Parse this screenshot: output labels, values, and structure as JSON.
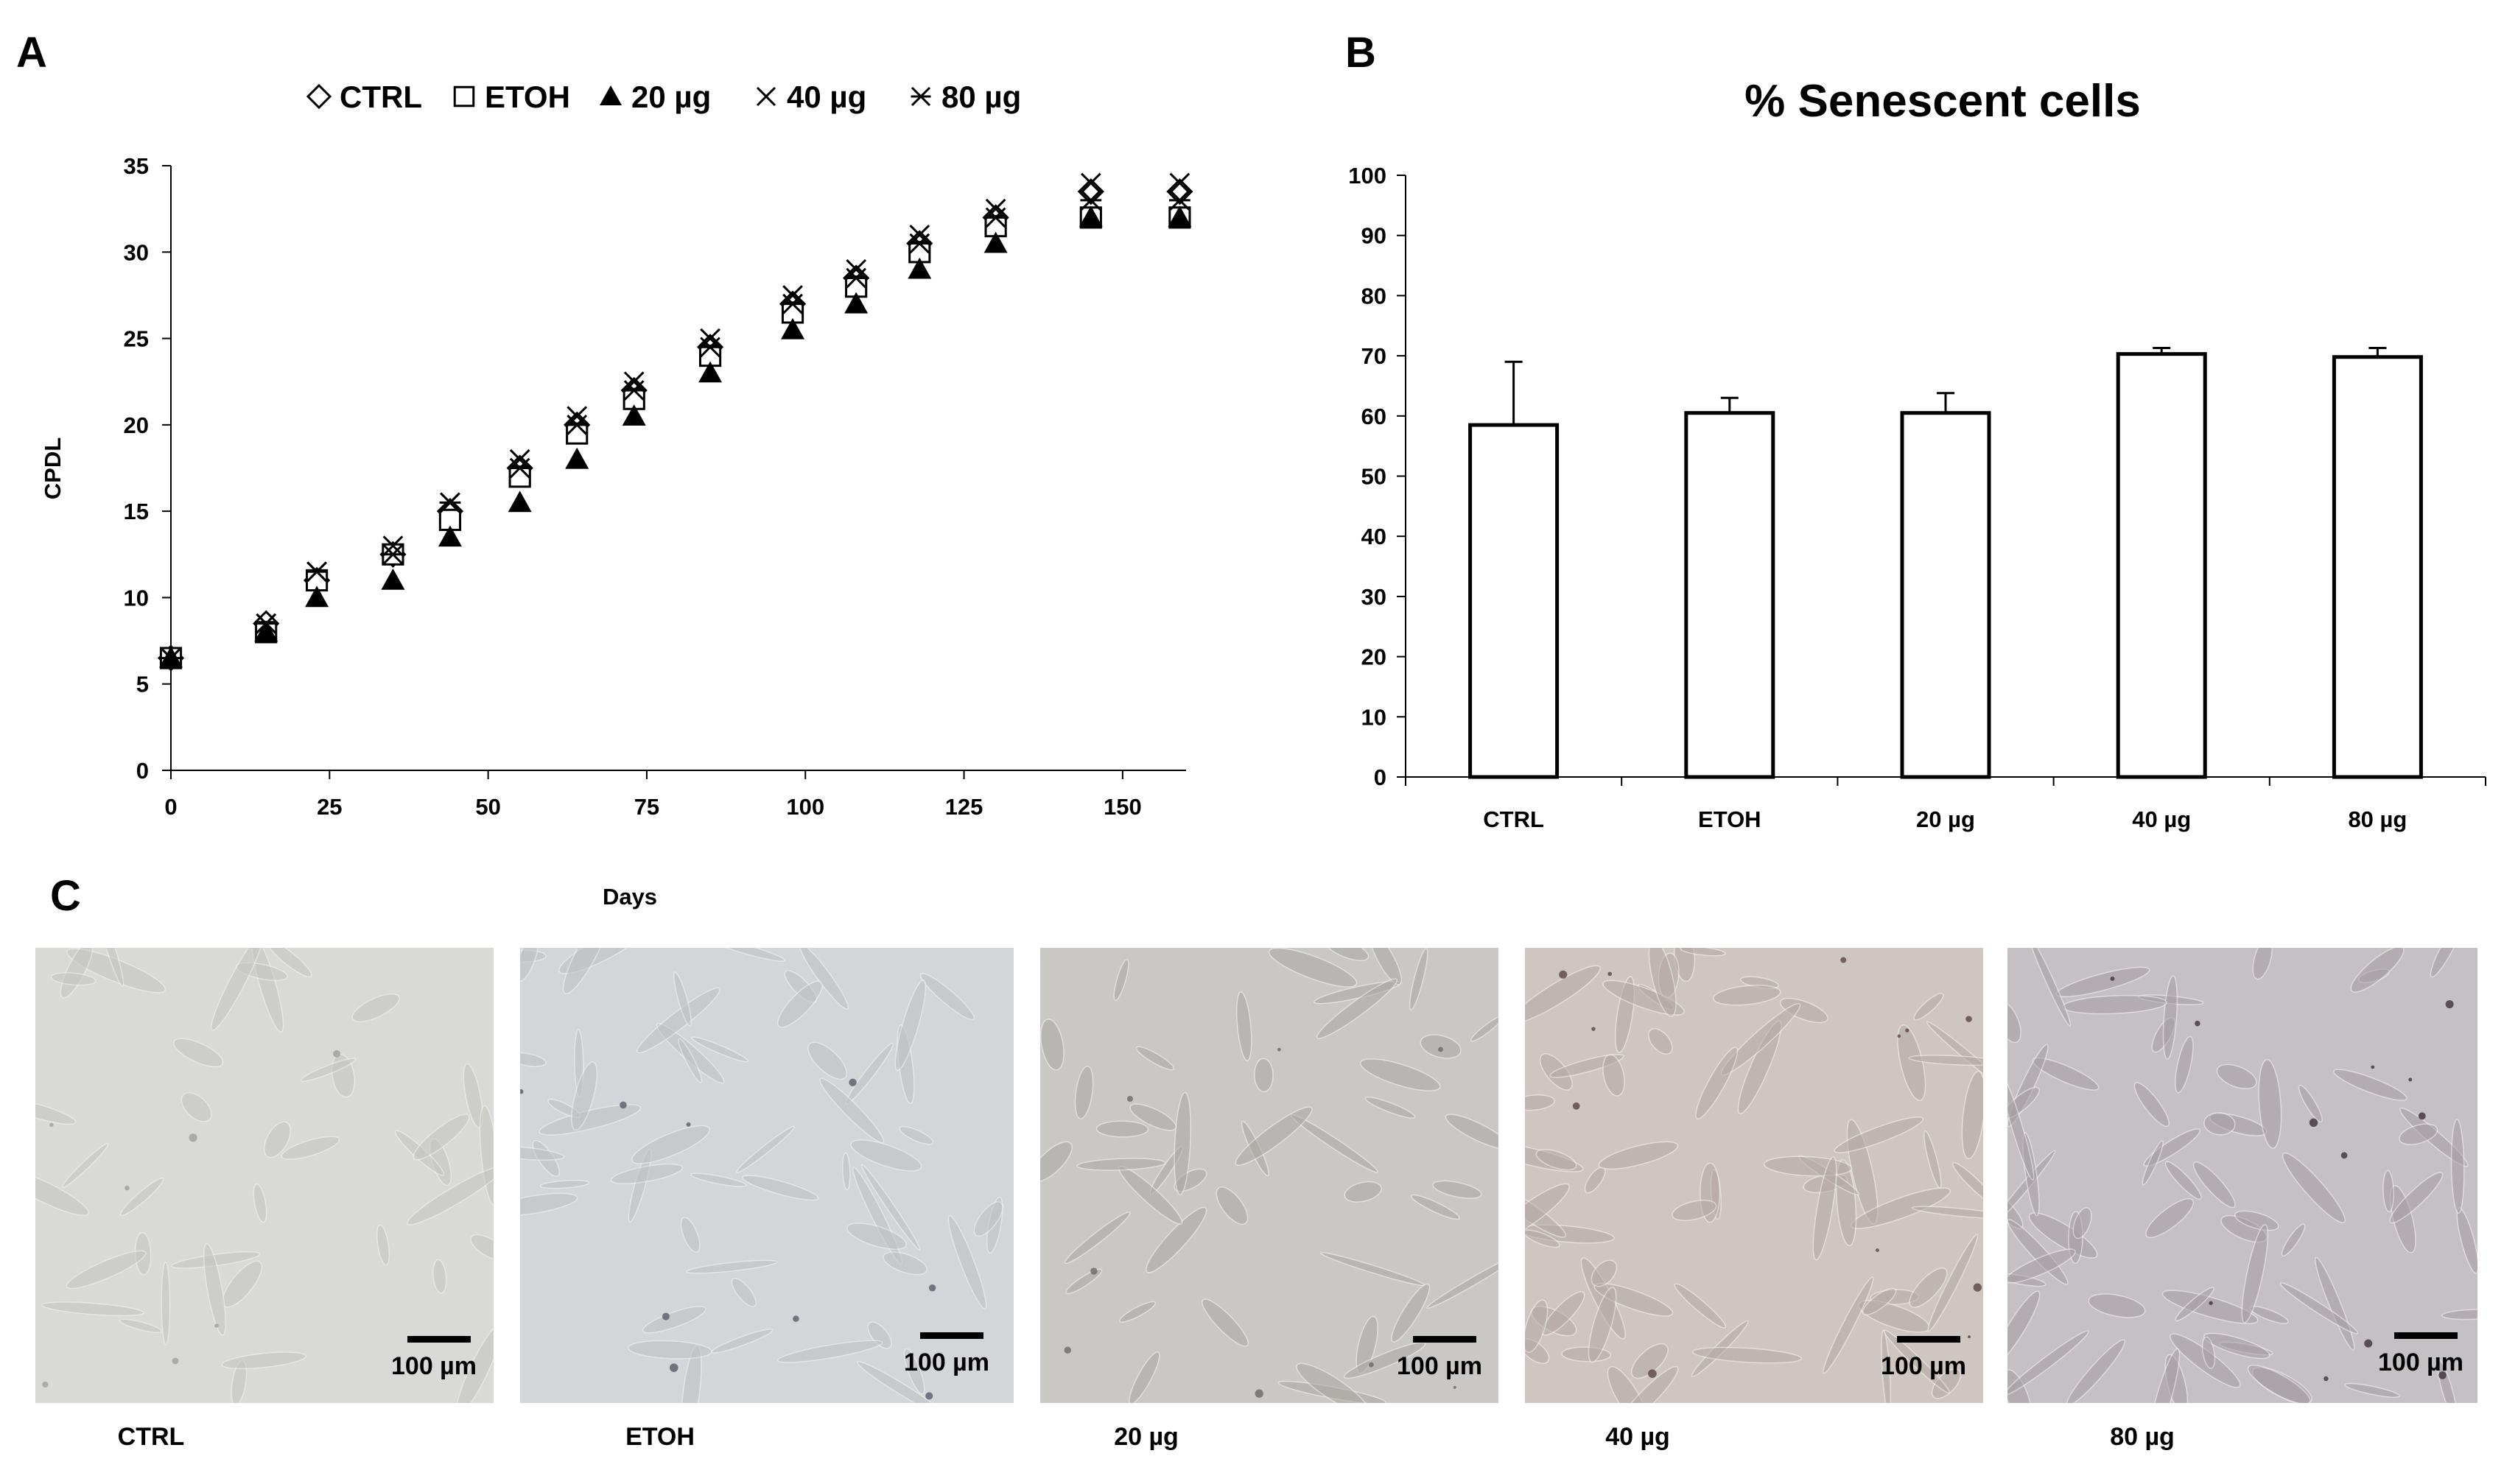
{
  "panels": {
    "a": "A",
    "b": "B",
    "c": "C"
  },
  "chart_data": [
    {
      "type": "scatter",
      "xlabel": "Days",
      "ylabel": "CPDL",
      "xlim": [
        0,
        160
      ],
      "ylim": [
        0,
        35
      ],
      "xticks": [
        0,
        25,
        50,
        75,
        100,
        125,
        150
      ],
      "yticks": [
        0,
        5,
        10,
        15,
        20,
        25,
        30,
        35
      ],
      "legend_position": "top",
      "x": [
        0,
        15,
        23,
        35,
        44,
        55,
        64,
        73,
        85,
        98,
        108,
        118,
        130,
        145,
        159
      ],
      "series": [
        {
          "name": "CTRL",
          "marker": "diamond",
          "values": [
            6.5,
            8.5,
            11.0,
            12.5,
            15.0,
            17.5,
            20.0,
            22.0,
            24.5,
            27.0,
            28.5,
            30.5,
            32.0,
            33.5,
            33.5
          ]
        },
        {
          "name": "ETOH",
          "marker": "square",
          "values": [
            6.5,
            8.0,
            11.0,
            12.5,
            14.5,
            17.0,
            19.5,
            21.5,
            24.0,
            26.5,
            28.0,
            30.0,
            31.5,
            32.0,
            32.0
          ]
        },
        {
          "name": "20 µg",
          "marker": "triangle",
          "values": [
            6.5,
            8.0,
            10.0,
            11.0,
            13.5,
            15.5,
            18.0,
            20.5,
            23.0,
            25.5,
            27.0,
            29.0,
            30.5,
            32.0,
            32.0
          ]
        },
        {
          "name": "40 µg",
          "marker": "x",
          "values": [
            6.5,
            8.5,
            11.5,
            13.0,
            15.5,
            18.0,
            20.5,
            22.5,
            25.0,
            27.5,
            29.0,
            31.0,
            32.5,
            34.0,
            34.0
          ]
        },
        {
          "name": "80 µg",
          "marker": "asterisk",
          "values": [
            6.5,
            8.5,
            11.5,
            12.5,
            15.5,
            17.5,
            20.0,
            22.0,
            24.5,
            27.0,
            28.5,
            30.5,
            32.0,
            33.0,
            33.0
          ]
        }
      ]
    },
    {
      "type": "bar",
      "title": "% Senescent cells",
      "categories": [
        "CTRL",
        "ETOH",
        "20 µg",
        "40 µg",
        "80 µg"
      ],
      "values": [
        58.5,
        60.5,
        60.5,
        70.3,
        69.8
      ],
      "error": [
        10.5,
        2.5,
        3.3,
        1.0,
        1.5
      ],
      "ylim": [
        0,
        100
      ],
      "yticks": [
        0,
        10,
        20,
        30,
        40,
        50,
        60,
        70,
        80,
        90,
        100
      ],
      "grid": false
    }
  ],
  "micrographs": [
    {
      "caption": "CTRL",
      "scale": "100 µm"
    },
    {
      "caption": "ETOH",
      "scale": "100 µm"
    },
    {
      "caption": "20 µg",
      "scale": "100 µm"
    },
    {
      "caption": "40 µg",
      "scale": "100 µm"
    },
    {
      "caption": "80 µg",
      "scale": "100 µm"
    }
  ]
}
